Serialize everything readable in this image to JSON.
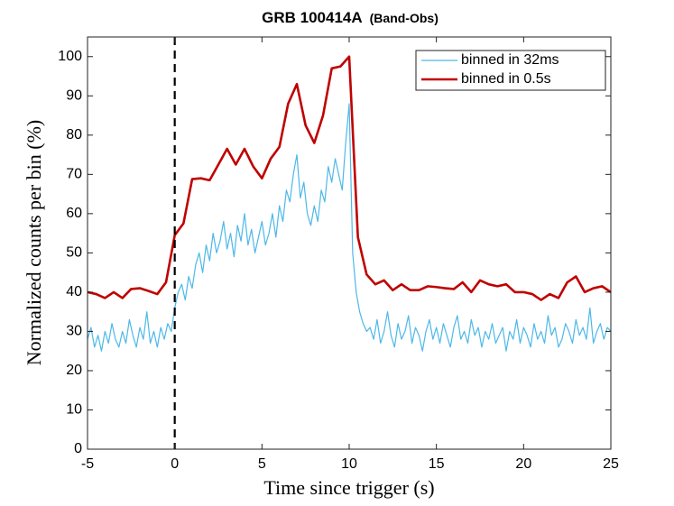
{
  "chart_data": {
    "type": "line",
    "title": "GRB 100414A",
    "subtitle": "(Band-Obs)",
    "xlabel": "Time since trigger (s)",
    "ylabel": "Normalized counts per bin (%)",
    "xlim": [
      -5,
      25
    ],
    "xticks": [
      -5,
      0,
      5,
      10,
      15,
      20,
      25
    ],
    "ylim": [
      0,
      105
    ],
    "yticks": [
      0,
      10,
      20,
      30,
      40,
      50,
      60,
      70,
      80,
      90,
      100
    ],
    "vline_x": 0,
    "legend": "upper right",
    "series": [
      {
        "name": "binned in 32ms",
        "color": "#4db8e8",
        "x": [
          -5,
          -4.8,
          -4.6,
          -4.4,
          -4.2,
          -4,
          -3.8,
          -3.6,
          -3.4,
          -3.2,
          -3,
          -2.8,
          -2.6,
          -2.4,
          -2.2,
          -2,
          -1.8,
          -1.6,
          -1.4,
          -1.2,
          -1,
          -0.8,
          -0.6,
          -0.4,
          -0.2,
          0,
          0.2,
          0.4,
          0.6,
          0.8,
          1,
          1.2,
          1.4,
          1.6,
          1.8,
          2,
          2.2,
          2.4,
          2.6,
          2.8,
          3,
          3.2,
          3.4,
          3.6,
          3.8,
          4,
          4.2,
          4.4,
          4.6,
          4.8,
          5,
          5.2,
          5.4,
          5.6,
          5.8,
          6,
          6.2,
          6.4,
          6.6,
          6.8,
          7,
          7.2,
          7.4,
          7.6,
          7.8,
          8,
          8.2,
          8.4,
          8.6,
          8.8,
          9,
          9.2,
          9.4,
          9.6,
          9.8,
          10,
          10.2,
          10.4,
          10.6,
          10.8,
          11,
          11.2,
          11.4,
          11.6,
          11.8,
          12,
          12.2,
          12.4,
          12.6,
          12.8,
          13,
          13.2,
          13.4,
          13.6,
          13.8,
          14,
          14.2,
          14.4,
          14.6,
          14.8,
          15,
          15.2,
          15.4,
          15.6,
          15.8,
          16,
          16.2,
          16.4,
          16.6,
          16.8,
          17,
          17.2,
          17.4,
          17.6,
          17.8,
          18,
          18.2,
          18.4,
          18.6,
          18.8,
          19,
          19.2,
          19.4,
          19.6,
          19.8,
          20,
          20.2,
          20.4,
          20.6,
          20.8,
          21,
          21.2,
          21.4,
          21.6,
          21.8,
          22,
          22.2,
          22.4,
          22.6,
          22.8,
          23,
          23.2,
          23.4,
          23.6,
          23.8,
          24,
          24.2,
          24.4,
          24.6,
          24.8,
          25
        ],
        "values": [
          28,
          31,
          26,
          29,
          25,
          30,
          27,
          32,
          28,
          26,
          30,
          27,
          33,
          29,
          26,
          31,
          28,
          35,
          27,
          30,
          26,
          31,
          28,
          32,
          30,
          36,
          40,
          42,
          38,
          44,
          41,
          47,
          50,
          45,
          52,
          48,
          55,
          50,
          53,
          58,
          51,
          55,
          49,
          57,
          53,
          60,
          52,
          56,
          50,
          54,
          58,
          52,
          55,
          60,
          54,
          62,
          58,
          66,
          63,
          70,
          75,
          64,
          68,
          60,
          57,
          62,
          58,
          66,
          63,
          72,
          68,
          74,
          70,
          66,
          78,
          88,
          50,
          40,
          35,
          32,
          30,
          31,
          28,
          33,
          27,
          30,
          35,
          29,
          26,
          32,
          28,
          30,
          34,
          27,
          31,
          29,
          25,
          30,
          33,
          28,
          31,
          27,
          32,
          29,
          26,
          31,
          34,
          28,
          30,
          27,
          33,
          29,
          31,
          26,
          30,
          28,
          32,
          27,
          29,
          31,
          25,
          30,
          28,
          33,
          27,
          31,
          29,
          26,
          32,
          28,
          30,
          27,
          34,
          29,
          31,
          26,
          28,
          32,
          30,
          27,
          33,
          29,
          31,
          28,
          36,
          27,
          30,
          32,
          28,
          31,
          30
        ]
      },
      {
        "name": "binned in 0.5s",
        "color": "#c00000",
        "x": [
          -5,
          -4.5,
          -4,
          -3.5,
          -3,
          -2.5,
          -2,
          -1.5,
          -1,
          -0.5,
          0,
          0.5,
          1,
          1.5,
          2,
          2.5,
          3,
          3.5,
          4,
          4.5,
          5,
          5.5,
          6,
          6.5,
          7,
          7.5,
          8,
          8.5,
          9,
          9.5,
          10,
          10.5,
          11,
          11.5,
          12,
          12.5,
          13,
          13.5,
          14,
          14.5,
          15,
          15.5,
          16,
          16.5,
          17,
          17.5,
          18,
          18.5,
          19,
          19.5,
          20,
          20.5,
          21,
          21.5,
          22,
          22.5,
          23,
          23.5,
          24,
          24.5,
          25
        ],
        "values": [
          40,
          39.5,
          38.5,
          40,
          38.5,
          40.8,
          41,
          40.3,
          39.5,
          42.5,
          54.5,
          57.5,
          68.8,
          69,
          68.5,
          72.5,
          76.5,
          72.5,
          76.5,
          72,
          69,
          74,
          77,
          88,
          93,
          82.5,
          78,
          85,
          97,
          97.5,
          100,
          54,
          44.5,
          42,
          43,
          40.5,
          42,
          40.5,
          40.5,
          41.5,
          41.3,
          41,
          40.8,
          42.5,
          40,
          43,
          42,
          41.5,
          42,
          40,
          40,
          39.5,
          38,
          39.5,
          38.5,
          42.5,
          44,
          40,
          41,
          41.5,
          40
        ]
      }
    ]
  }
}
